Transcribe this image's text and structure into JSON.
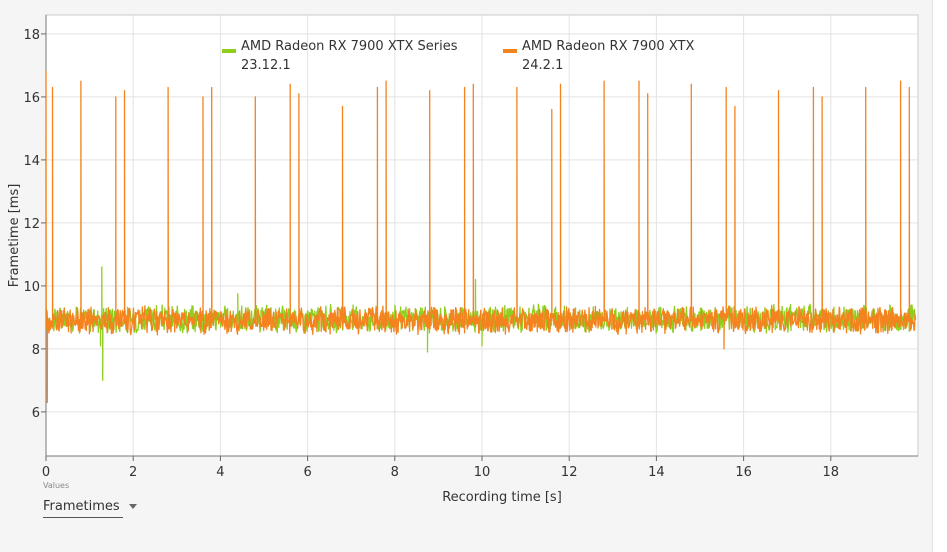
{
  "chart_data": {
    "type": "line",
    "xlabel": "Recording time [s]",
    "ylabel": "Frametime [ms]",
    "xlim": [
      0,
      20
    ],
    "ylim": [
      4.6,
      18.6
    ],
    "x_ticks": [
      0,
      2,
      4,
      6,
      8,
      10,
      12,
      14,
      16,
      18
    ],
    "y_ticks": [
      6,
      8,
      10,
      12,
      14,
      16,
      18
    ],
    "grid": true,
    "legend_position": "top-center",
    "series": [
      {
        "name": "AMD Radeon RX 7900 XTX Series\n23.12.1",
        "legend_lines": [
          "AMD Radeon RX 7900 XTX Series",
          "23.12.1"
        ],
        "color": "#8fce1e",
        "baseline_ms": 8.95,
        "spikes": [
          {
            "x": 1.28,
            "y": 10.6
          },
          {
            "x": 1.3,
            "y": 7.0
          },
          {
            "x": 1.25,
            "y": 8.1
          },
          {
            "x": 4.4,
            "y": 9.75
          },
          {
            "x": 8.75,
            "y": 7.9
          },
          {
            "x": 9.85,
            "y": 10.2
          },
          {
            "x": 10.0,
            "y": 8.1
          }
        ]
      },
      {
        "name": "AMD Radeon RX 7900 XTX\n24.2.1",
        "legend_lines": [
          "AMD Radeon RX 7900 XTX",
          "24.2.1"
        ],
        "color": "#f4831f",
        "baseline_ms": 8.9,
        "spikes": [
          {
            "x": 0.0,
            "y": 16.8
          },
          {
            "x": 0.03,
            "y": 6.3
          },
          {
            "x": 0.15,
            "y": 16.3
          },
          {
            "x": 0.8,
            "y": 16.5
          },
          {
            "x": 1.6,
            "y": 16.0
          },
          {
            "x": 1.8,
            "y": 16.2
          },
          {
            "x": 2.8,
            "y": 16.3
          },
          {
            "x": 3.6,
            "y": 16.0
          },
          {
            "x": 3.8,
            "y": 16.3
          },
          {
            "x": 4.8,
            "y": 16.0
          },
          {
            "x": 5.6,
            "y": 16.4
          },
          {
            "x": 5.8,
            "y": 16.1
          },
          {
            "x": 6.8,
            "y": 15.7
          },
          {
            "x": 7.6,
            "y": 16.3
          },
          {
            "x": 7.8,
            "y": 16.5
          },
          {
            "x": 8.8,
            "y": 16.2
          },
          {
            "x": 9.6,
            "y": 16.3
          },
          {
            "x": 9.8,
            "y": 16.4
          },
          {
            "x": 10.8,
            "y": 16.3
          },
          {
            "x": 11.6,
            "y": 15.6
          },
          {
            "x": 11.8,
            "y": 16.4
          },
          {
            "x": 12.8,
            "y": 16.5
          },
          {
            "x": 13.6,
            "y": 16.5
          },
          {
            "x": 13.8,
            "y": 16.1
          },
          {
            "x": 14.8,
            "y": 16.4
          },
          {
            "x": 15.6,
            "y": 16.3
          },
          {
            "x": 15.8,
            "y": 15.7
          },
          {
            "x": 16.8,
            "y": 16.2
          },
          {
            "x": 17.6,
            "y": 16.3
          },
          {
            "x": 17.8,
            "y": 16.0
          },
          {
            "x": 18.8,
            "y": 16.3
          },
          {
            "x": 19.6,
            "y": 16.5
          },
          {
            "x": 19.8,
            "y": 16.3
          },
          {
            "x": 15.55,
            "y": 8.0
          }
        ]
      }
    ]
  },
  "values_control": {
    "caption": "Values",
    "selected": "Frametimes"
  }
}
